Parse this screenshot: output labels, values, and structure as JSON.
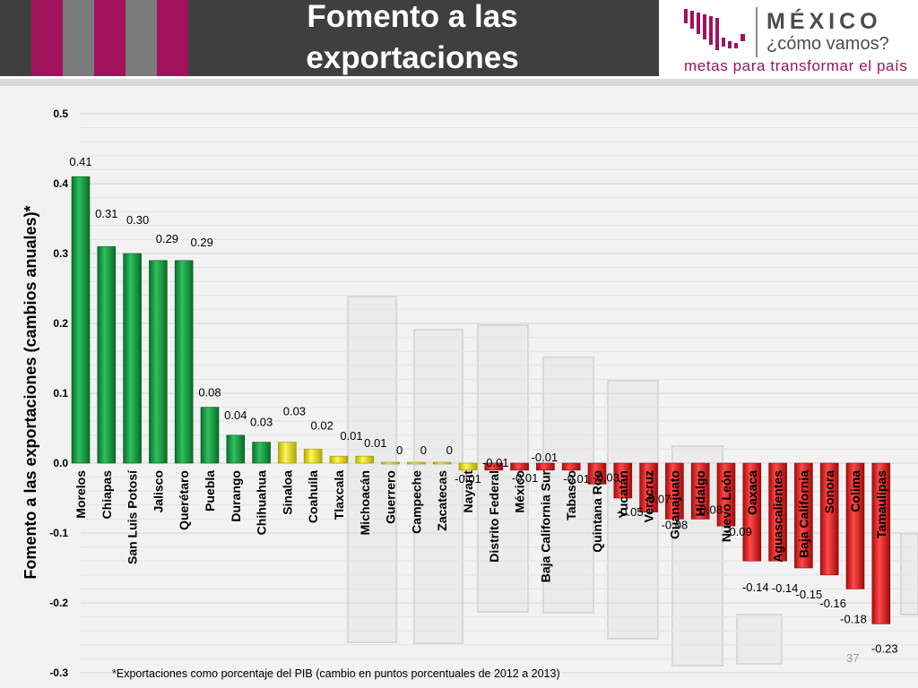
{
  "header": {
    "title_line1": "Fomento a las",
    "title_line2": "exportaciones",
    "stripe_colors": [
      "#a0125c",
      "#7a7a7a",
      "#a0125c",
      "#7a7a7a",
      "#a0125c"
    ]
  },
  "logo": {
    "word": "MÉXICO",
    "subtitle": "¿cómo vamos?",
    "tagline": "metas para transformar el país",
    "brand_color": "#a0125c"
  },
  "footnote": "*Exportaciones como porcentaje del PIB (cambio en puntos porcentuales de 2012 a 2013)",
  "page_number": "37",
  "chart_data": {
    "type": "bar",
    "title": "",
    "ylabel": "Fomento a las exportaciones (cambios anuales)*",
    "xlabel": "",
    "ylim": [
      -0.3,
      0.5
    ],
    "yticks": [
      {
        "v": 0.5,
        "t": "0.5"
      },
      {
        "v": 0.4,
        "t": "0.4"
      },
      {
        "v": 0.3,
        "t": "0.3"
      },
      {
        "v": 0.2,
        "t": "0.2"
      },
      {
        "v": 0.1,
        "t": "0.1"
      },
      {
        "v": 0.0,
        "t": "0.0"
      },
      {
        "v": -0.1,
        "t": "-0.1"
      },
      {
        "v": -0.2,
        "t": "-0.2"
      },
      {
        "v": -0.3,
        "t": "-0.3"
      }
    ],
    "grid": true,
    "legend": "none",
    "colors": {
      "positive": "#1aa64a",
      "neutral": "#f2ec1a",
      "negative": "#e61e1e"
    },
    "categories": [
      "Morelos",
      "Chiapas",
      "San Luis Potosí",
      "Jalisco",
      "Querétaro",
      "Puebla",
      "Durango",
      "Chihuahua",
      "Sinaloa",
      "Coahuila",
      "Tlaxcala",
      "Michoacán",
      "Guerrero",
      "Campeche",
      "Zacatecas",
      "Nayarit",
      "Distrito Federal",
      "México",
      "Baja California Sur",
      "Tabasco",
      "Quintana Roo",
      "Yucatán",
      "Veracruz",
      "Guanajuato",
      "Hidalgo",
      "Nuevo León",
      "Oaxaca",
      "Aguascalientes",
      "Baja California",
      "Sonora",
      "Colima",
      "Tamaulipas"
    ],
    "values": [
      0.41,
      0.31,
      0.3,
      0.29,
      0.29,
      0.08,
      0.04,
      0.03,
      0.03,
      0.02,
      0.01,
      0.01,
      0.0,
      0.0,
      0.0,
      -0.01,
      -0.01,
      -0.01,
      -0.01,
      -0.01,
      -0.03,
      -0.05,
      -0.07,
      -0.08,
      -0.08,
      -0.09,
      -0.14,
      -0.14,
      -0.15,
      -0.16,
      -0.18,
      -0.23
    ],
    "value_labels": [
      "0.41",
      "0.31",
      "0.30",
      "0.29",
      "0.29",
      "0.08",
      "0.04",
      "0.03",
      "0.03",
      "0.02",
      "0.01",
      "0.01",
      "0",
      "0",
      "0",
      "-0.01",
      "-0.01",
      "-0.01",
      "-0.01",
      "-0.01",
      "-0.03",
      "-0.05",
      "-0.07",
      "-0.08",
      "-0.08",
      "-0.09",
      "-0.14",
      "-0.14",
      "-0.15",
      "-0.16",
      "-0.18",
      "-0.23"
    ],
    "bar_colors": [
      "positive",
      "positive",
      "positive",
      "positive",
      "positive",
      "positive",
      "positive",
      "positive",
      "neutral",
      "neutral",
      "neutral",
      "neutral",
      "neutral",
      "neutral",
      "neutral",
      "neutral",
      "negative",
      "negative",
      "negative",
      "negative",
      "negative",
      "negative",
      "negative",
      "negative",
      "negative",
      "negative",
      "negative",
      "negative",
      "negative",
      "negative",
      "negative",
      "negative"
    ]
  }
}
